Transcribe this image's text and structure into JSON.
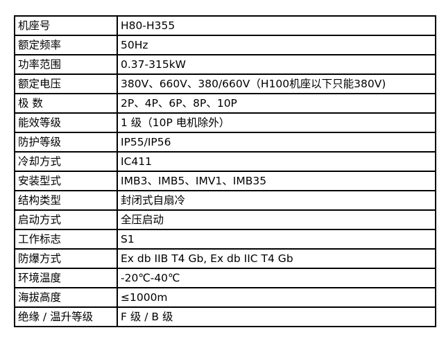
{
  "rows": [
    {
      "label": "机座号",
      "value": "H80-H355"
    },
    {
      "label": "额定频率",
      "value": "50Hz"
    },
    {
      "label": "功率范围",
      "value": "0.37-315kW"
    },
    {
      "label": "额定电压",
      "value": "380V、660V、380/660V（H100机座以下只能380V)"
    },
    {
      "label": "极 数",
      "value": "2P、4P、6P、8P、10P"
    },
    {
      "label": "能效等级",
      "value": "1 级（10P 电机除外）"
    },
    {
      "label": "防护等级",
      "value": "IP55/IP56"
    },
    {
      "label": "冷却方式",
      "value": "IC411"
    },
    {
      "label": "安装型式",
      "value": "IMB3、IMB5、IMV1、IMB35"
    },
    {
      "label": "结构类型",
      "value": "封闭式自扇冷"
    },
    {
      "label": "启动方式",
      "value": "全压启动"
    },
    {
      "label": "工作标志",
      "value": "S1"
    },
    {
      "label": "防爆方式",
      "value": "Ex db IIB T4 Gb, Ex db IIC T4 Gb"
    },
    {
      "label": "环境温度",
      "value": "-20℃-40℃"
    },
    {
      "label": "海拔高度",
      "value": "≤1000m"
    },
    {
      "label": "绝缘 / 温升等级",
      "value": "F 级 / B 级"
    }
  ]
}
